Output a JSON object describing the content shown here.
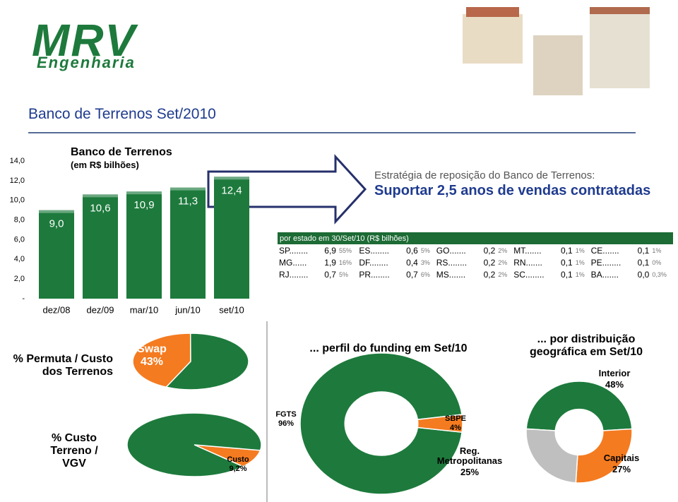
{
  "header": {
    "logo": "MRV",
    "logo_sub": "Engenharia",
    "title": "Banco de Terrenos Set/2010"
  },
  "annotation": {
    "line1": "Estratégia de reposição do Banco de Terrenos:",
    "line2": "Suportar 2,5 anos de vendas contratadas"
  },
  "table": {
    "title": "por estado em 30/Set/10 (R$ bilhões)",
    "rows": [
      [
        "SP........",
        "6,9",
        "55%",
        "ES........",
        "0,6",
        "5%",
        "GO.......",
        "0,2",
        "2%",
        "MT.......",
        "0,1",
        "1%",
        "CE.......",
        "0,1",
        "1%"
      ],
      [
        "MG......",
        "1,9",
        "16%",
        "DF........",
        "0,4",
        "3%",
        "RS........",
        "0,2",
        "2%",
        "RN.......",
        "0,1",
        "1%",
        "PE........",
        "0,1",
        "0%"
      ],
      [
        "RJ........",
        "0,7",
        "5%",
        "PR........",
        "0,7",
        "6%",
        "MS.......",
        "0,2",
        "2%",
        "SC........",
        "0,1",
        "1%",
        "BA.......",
        "0,0",
        "0,3%"
      ]
    ]
  },
  "chart_data": [
    {
      "type": "bar",
      "title": "Banco de Terrenos",
      "subtitle": "(em R$ bilhões)",
      "categories": [
        "dez/08",
        "dez/09",
        "mar/10",
        "jun/10",
        "set/10"
      ],
      "values": [
        9.0,
        10.6,
        10.9,
        11.3,
        12.4
      ],
      "value_labels": [
        "9,0",
        "10,6",
        "10,9",
        "11,3",
        "12,4"
      ],
      "color": "#1d7a3c",
      "ylim": [
        0,
        14
      ],
      "yticks": [
        {
          "value": 0,
          "label": "-"
        },
        {
          "value": 2,
          "label": "2,0"
        },
        {
          "value": 4,
          "label": "4,0"
        },
        {
          "value": 6,
          "label": "6,0"
        },
        {
          "value": 8,
          "label": "8,0"
        },
        {
          "value": 10,
          "label": "10,0"
        },
        {
          "value": 12,
          "label": "12,0"
        },
        {
          "value": 14,
          "label": "14,0"
        }
      ]
    },
    {
      "type": "pie",
      "title": "% Permuta / Custo dos Terrenos",
      "categories": [
        "Swap",
        null
      ],
      "values": [
        43,
        57
      ],
      "value_labels": [
        "43%",
        null
      ],
      "colors": [
        "#f47b20",
        "#1d7a3c"
      ]
    },
    {
      "type": "pie",
      "title": "% Custo Terreno / VGV",
      "categories": [
        "Custo",
        null
      ],
      "values": [
        9.2,
        90.8
      ],
      "value_labels": [
        "9,2%",
        null
      ],
      "colors": [
        "#f47b20",
        "#1d7a3c"
      ]
    },
    {
      "type": "donut",
      "title": "... perfil do funding em Set/10",
      "categories": [
        "FGTS",
        "SBPE"
      ],
      "values": [
        96,
        4
      ],
      "value_labels": [
        "96%",
        "4%"
      ],
      "colors": [
        "#1d7a3c",
        "#f47b20"
      ]
    },
    {
      "type": "donut",
      "title": "... por distribuição geográfica em Set/10",
      "categories": [
        "Interior",
        "Capitais",
        "Reg. Metropolitanas"
      ],
      "values": [
        48,
        27,
        25
      ],
      "value_labels": [
        "48%",
        "27%",
        "25%"
      ],
      "colors": [
        "#1d7a3c",
        "#f47b20",
        "#bfbfbf"
      ]
    }
  ]
}
